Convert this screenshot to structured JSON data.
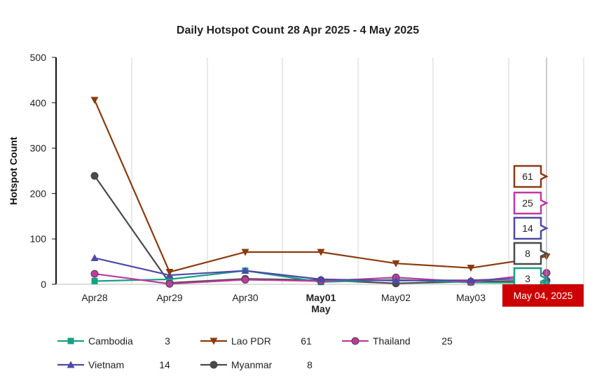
{
  "chart_data": {
    "type": "line",
    "title": "Daily Hotspot Count 28 Apr 2025 - 4 May 2025",
    "ylabel": "Hotspot Count",
    "xlabel": "",
    "ylim": [
      0,
      500
    ],
    "yticks": [
      "0",
      "100",
      "200",
      "300",
      "400",
      "500"
    ],
    "ytick_values": [
      0,
      100,
      200,
      300,
      400,
      500
    ],
    "categories": [
      "Apr28",
      "Apr29",
      "Apr30",
      "May01",
      "May02",
      "May03",
      "May 04"
    ],
    "month_label": "May",
    "grid": true,
    "series": [
      {
        "name": "Cambodia",
        "color": "#17a085",
        "marker": "square",
        "values": [
          7,
          11,
          30,
          5,
          10,
          4,
          3
        ],
        "current": "3"
      },
      {
        "name": "Lao PDR",
        "color": "#8b3a0e",
        "marker": "triangle-down",
        "values": [
          406,
          27,
          71,
          71,
          46,
          36,
          61
        ],
        "current": "61"
      },
      {
        "name": "Thailand",
        "color": "#c0399e",
        "marker": "circle",
        "values": [
          23,
          1,
          10,
          7,
          15,
          5,
          25
        ],
        "current": "25"
      },
      {
        "name": "Vietnam",
        "color": "#4d4aa6",
        "marker": "triangle-up",
        "values": [
          58,
          20,
          30,
          11,
          8,
          9,
          14
        ],
        "current": "14"
      },
      {
        "name": "Myanmar",
        "color": "#4a4a4a",
        "marker": "circle",
        "values": [
          239,
          3,
          12,
          9,
          2,
          6,
          8
        ],
        "current": "8"
      }
    ],
    "legend_placement": "bottom",
    "crosshair_label": "May 04, 2025",
    "crosshair_color": "#cc0000"
  }
}
